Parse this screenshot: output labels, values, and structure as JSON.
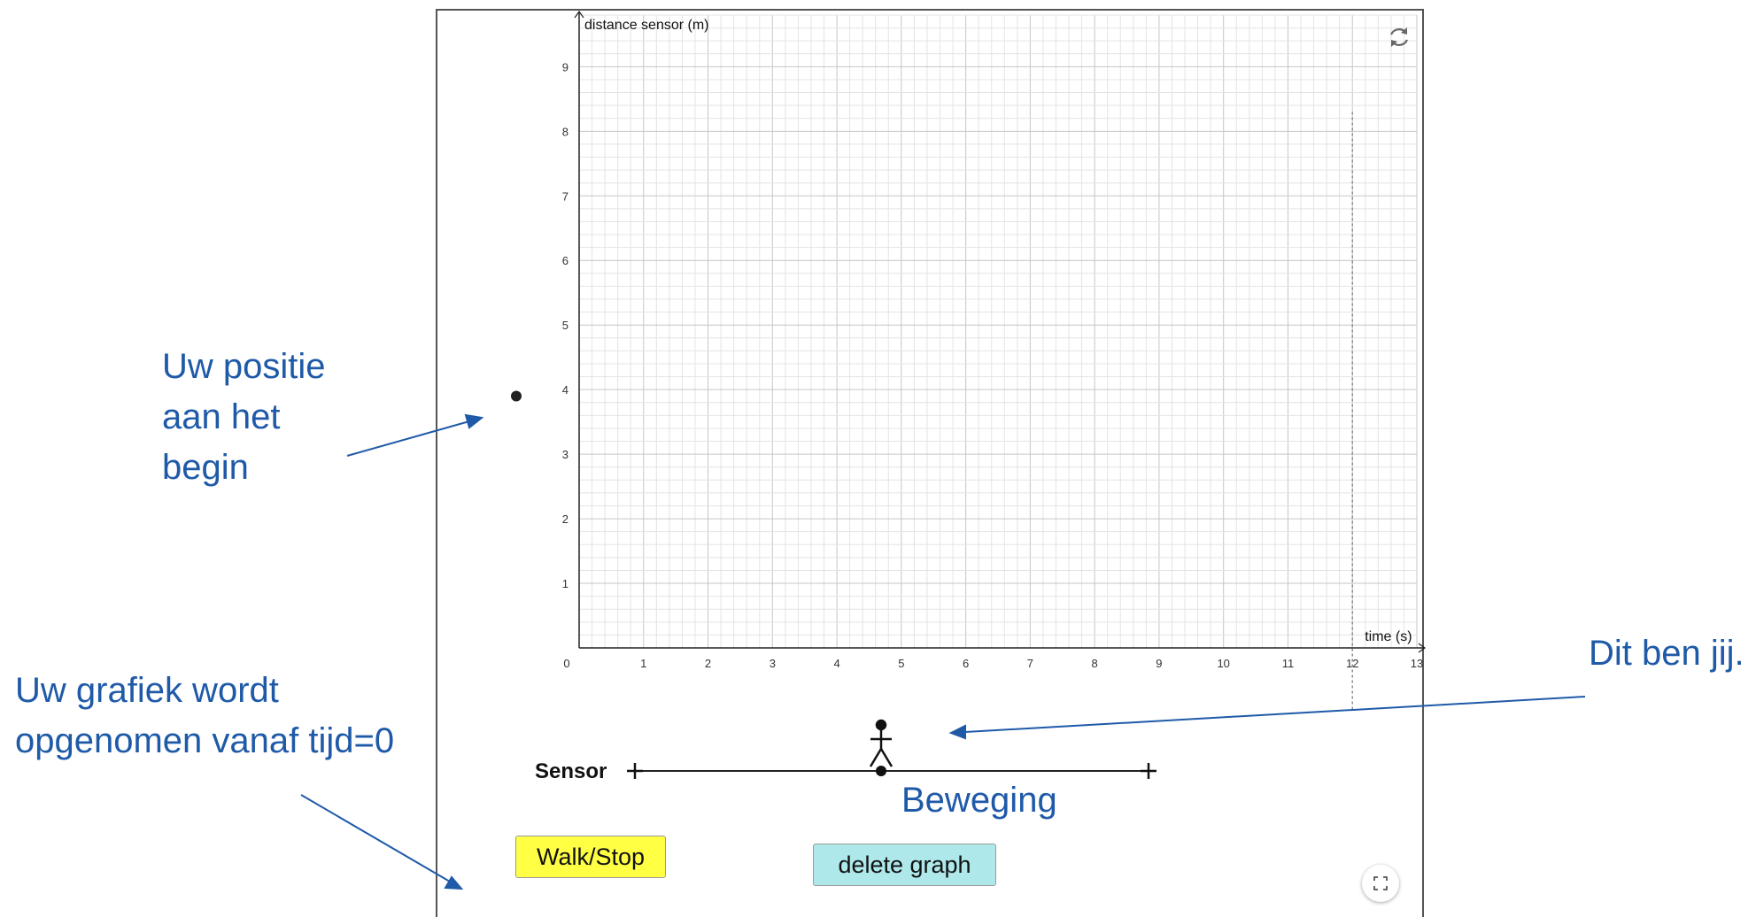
{
  "colors": {
    "annotation": "#1f5aa8",
    "walk_button": "#ffff44",
    "delete_button": "#aee8ea",
    "grid_minor": "#e4e4e4",
    "grid_major": "#c6c6c6"
  },
  "applet": {
    "walk_button_label": "Walk/Stop",
    "delete_button_label": "delete graph",
    "track_label": "Sensor",
    "motion_label": "Beweging",
    "refresh_icon": "refresh-icon",
    "fullscreen_icon": "fullscreen-icon"
  },
  "annotations": {
    "start_position": [
      "Uw positie",
      "aan het",
      "begin"
    ],
    "recording": [
      "Uw grafiek wordt",
      "opgenomen vanaf tijd=0"
    ],
    "you": "Dit ben jij."
  },
  "chart_data": {
    "type": "line",
    "xlabel": "time (s)",
    "ylabel": "distance sensor (m)",
    "xlim": [
      0,
      13
    ],
    "ylim": [
      0,
      9.8
    ],
    "x_ticks": [
      0,
      1,
      2,
      3,
      4,
      5,
      6,
      7,
      8,
      9,
      10,
      11,
      12,
      13
    ],
    "y_ticks": [
      1,
      2,
      3,
      4,
      5,
      6,
      7,
      8,
      9
    ],
    "grid": true,
    "start_position": 3.9,
    "end_time_marker": 12,
    "series": []
  }
}
